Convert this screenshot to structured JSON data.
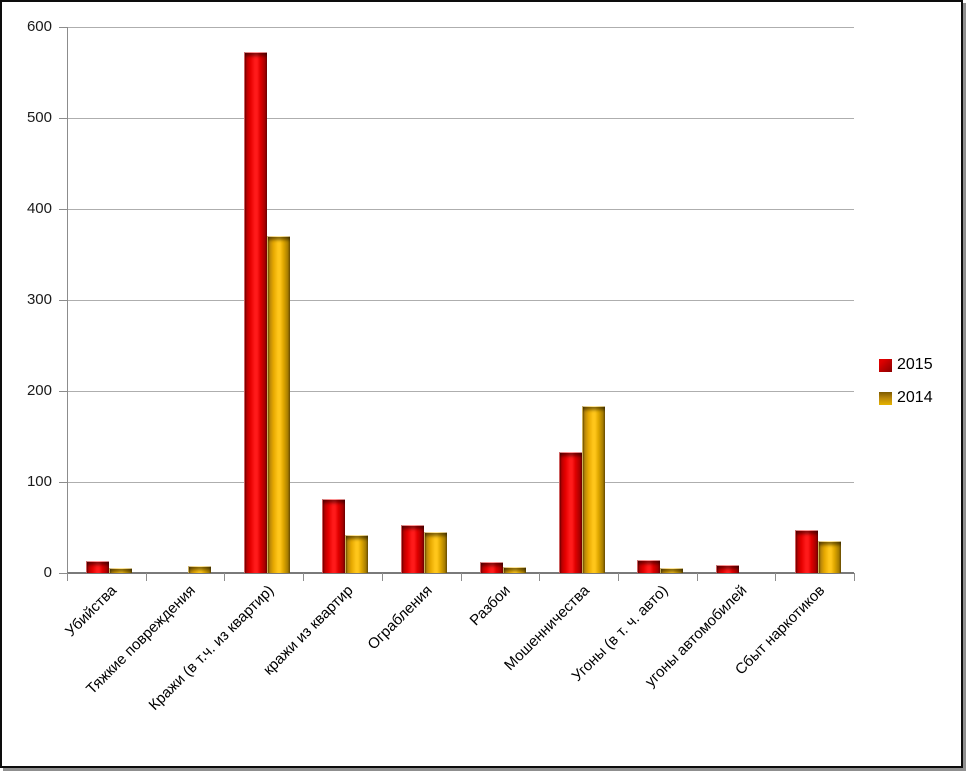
{
  "chart_data": {
    "type": "bar",
    "title": "",
    "xlabel": "",
    "ylabel": "",
    "categories": [
      "Убийства",
      "Тяжкие повреждения",
      "Кражи (в т.ч. из квартир)",
      "кражи из квартир",
      "Ограбления",
      "Разбои",
      "Мошенничества",
      "Угоны (в т. ч. авто)",
      "угоны автомобилей",
      "Сбыт наркотиков"
    ],
    "series": [
      {
        "name": "2015",
        "color": "#e00000",
        "values": [
          13,
          0,
          572,
          81,
          53,
          12,
          133,
          14,
          9,
          47
        ]
      },
      {
        "name": "2014",
        "color": "#ffc000",
        "values": [
          6,
          8,
          370,
          42,
          45,
          7,
          183,
          5,
          0,
          35
        ]
      }
    ],
    "ylim": [
      0,
      600
    ],
    "yticks": [
      0,
      100,
      200,
      300,
      400,
      500,
      600
    ],
    "grid": "horizontal",
    "legend_position": "right"
  }
}
